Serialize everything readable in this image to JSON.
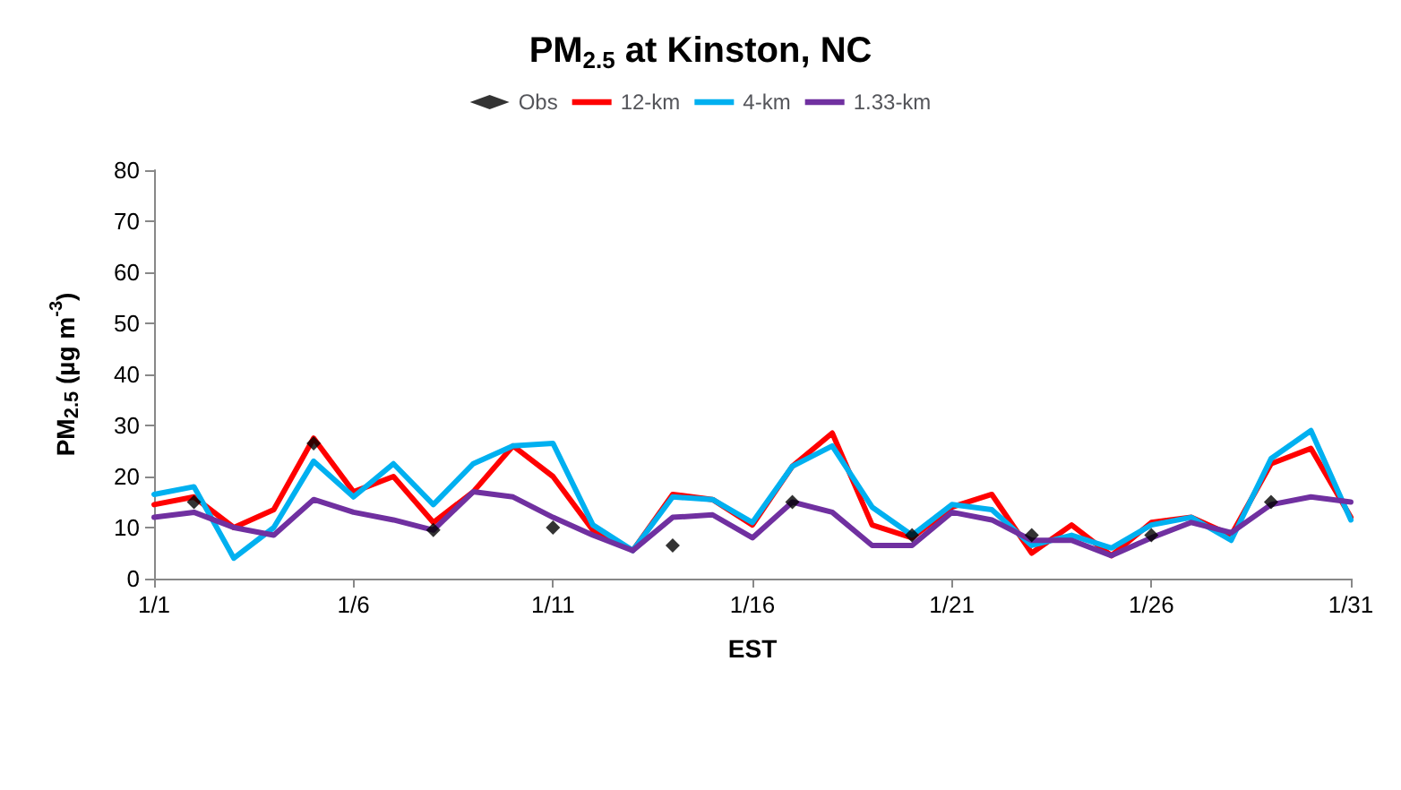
{
  "chart_data": {
    "type": "line",
    "title": "PM$_{2.5}$ at Kinston, NC",
    "xlabel": "EST",
    "ylabel": "PM$_{2.5}$ (µg m$^{-3}$)",
    "x": [
      "--01-01",
      "--01-02",
      "--01-03",
      "--01-04",
      "--01-05",
      "--01-06",
      "--01-07",
      "--01-08",
      "--01-09",
      "--01-10",
      "--01-11",
      "--01-12",
      "--01-13",
      "--01-14",
      "--01-15",
      "--01-16",
      "--01-17",
      "--01-18",
      "--01-19",
      "--01-20",
      "--01-21",
      "--01-22",
      "--01-23",
      "--01-24",
      "--01-25",
      "--01-26",
      "--01-27",
      "--01-28",
      "--01-29",
      "--01-30",
      "--01-31"
    ],
    "series": [
      {
        "name": "Obs",
        "type": "scatter",
        "marker": "diamond",
        "color": "#000000",
        "x": [
          "--01-02",
          "--01-05",
          "--01-08",
          "--01-11",
          "--01-14",
          "--01-17",
          "--01-20",
          "--01-23",
          "--01-26",
          "--01-29"
        ],
        "values": [
          15,
          26.5,
          9.5,
          10,
          6.5,
          15,
          8.5,
          8.5,
          8.5,
          15
        ]
      },
      {
        "name": "12-km",
        "color": "#ff0000",
        "values": [
          14.5,
          16,
          10,
          13.5,
          27.5,
          17,
          20,
          11,
          17,
          26,
          20,
          9.5,
          5.5,
          16.5,
          15.5,
          10.5,
          22,
          28.5,
          10.5,
          8,
          14,
          16.5,
          5,
          10.5,
          4.5,
          11,
          12,
          8.5,
          22.5,
          25.5,
          12
        ]
      },
      {
        "name": "4-km",
        "color": "#00b0f0",
        "values": [
          16.5,
          18,
          4,
          10,
          23,
          16,
          22.5,
          14.5,
          22.5,
          26,
          26.5,
          10.5,
          5.5,
          16,
          15.5,
          11,
          22,
          26,
          14,
          8.5,
          14.5,
          13.5,
          6.5,
          8.5,
          6,
          10.5,
          12,
          7.5,
          23.5,
          29,
          11.5
        ]
      },
      {
        "name": "1.33-km",
        "color": "#7030a0",
        "values": [
          12,
          13,
          10,
          8.5,
          15.5,
          13,
          11.5,
          9.5,
          17,
          16,
          12,
          8.5,
          5.5,
          12,
          12.5,
          8,
          15,
          13,
          6.5,
          6.5,
          13,
          11.5,
          7.5,
          7.5,
          4.5,
          8,
          11,
          9,
          14.5,
          16,
          15
        ]
      }
    ],
    "marker": "none",
    "line_style": "solid",
    "legend": "top",
    "grid": false,
    "xlim": [
      "--01-01",
      "--01-31"
    ],
    "xticks": [
      {
        "value": "--01-01",
        "label": "1/1"
      },
      {
        "value": "--01-06",
        "label": "1/6"
      },
      {
        "value": "--01-11",
        "label": "1/11"
      },
      {
        "value": "--01-16",
        "label": "1/16"
      },
      {
        "value": "--01-21",
        "label": "1/21"
      },
      {
        "value": "--01-26",
        "label": "1/26"
      },
      {
        "value": "--01-31",
        "label": "1/31"
      }
    ],
    "ylim": [
      0,
      80
    ],
    "yticks": [
      0,
      10,
      20,
      30,
      40,
      50,
      60,
      70,
      80
    ]
  }
}
